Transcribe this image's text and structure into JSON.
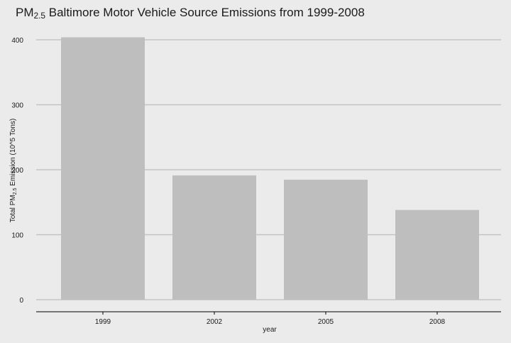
{
  "chart_data": {
    "type": "bar",
    "title_main": "PM",
    "title_sub": "2.5",
    "title_rest": " Baltimore Motor Vehicle Source Emissions from 1999-2008",
    "xlabel": "year",
    "ylabel_main": "Total PM",
    "ylabel_sub": "2.5",
    "ylabel_rest": " Emission (10^5 Tons)",
    "categories": [
      "1999",
      "2002",
      "2005",
      "2008"
    ],
    "values": [
      403.8,
      191.2,
      184.6,
      138.1
    ],
    "ylim": [
      0,
      420
    ],
    "yticks": [
      0,
      100,
      200,
      300,
      400
    ],
    "bar_color": "#bebebe",
    "grid": true
  }
}
